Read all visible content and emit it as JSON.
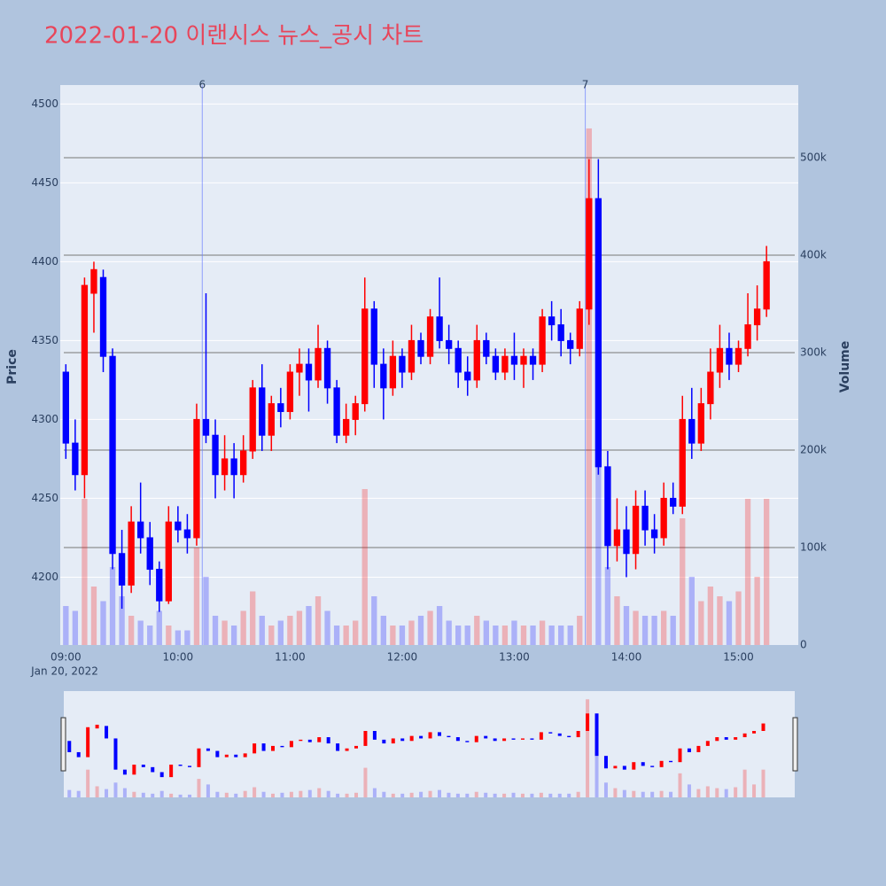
{
  "chart_data": {
    "type": "candlestick",
    "title": "2022-01-20 이랜시스 뉴스_공시 차트",
    "y_axis_label": "Price",
    "y2_axis_label": "Volume",
    "xaxis_date_label": "Jan 20, 2022",
    "increasing_color": "#ff0000",
    "decreasing_color": "#0000ff",
    "x": [
      "2022-01-20 09:00",
      "2022-01-20 09:05",
      "2022-01-20 09:10",
      "2022-01-20 09:15",
      "2022-01-20 09:20",
      "2022-01-20 09:25",
      "2022-01-20 09:30",
      "2022-01-20 09:35",
      "2022-01-20 09:40",
      "2022-01-20 09:45",
      "2022-01-20 09:50",
      "2022-01-20 09:55",
      "2022-01-20 10:00",
      "2022-01-20 10:05",
      "2022-01-20 10:10",
      "2022-01-20 10:15",
      "2022-01-20 10:20",
      "2022-01-20 10:25",
      "2022-01-20 10:30",
      "2022-01-20 10:35",
      "2022-01-20 10:40",
      "2022-01-20 10:45",
      "2022-01-20 10:50",
      "2022-01-20 10:55",
      "2022-01-20 11:00",
      "2022-01-20 11:05",
      "2022-01-20 11:10",
      "2022-01-20 11:15",
      "2022-01-20 11:20",
      "2022-01-20 11:25",
      "2022-01-20 11:30",
      "2022-01-20 11:35",
      "2022-01-20 11:40",
      "2022-01-20 11:45",
      "2022-01-20 11:50",
      "2022-01-20 11:55",
      "2022-01-20 12:00",
      "2022-01-20 12:05",
      "2022-01-20 12:10",
      "2022-01-20 12:15",
      "2022-01-20 12:20",
      "2022-01-20 12:25",
      "2022-01-20 12:30",
      "2022-01-20 12:35",
      "2022-01-20 12:40",
      "2022-01-20 12:45",
      "2022-01-20 12:50",
      "2022-01-20 12:55",
      "2022-01-20 13:00",
      "2022-01-20 13:05",
      "2022-01-20 13:10",
      "2022-01-20 13:15",
      "2022-01-20 13:20",
      "2022-01-20 13:25",
      "2022-01-20 13:30",
      "2022-01-20 13:35",
      "2022-01-20 13:40",
      "2022-01-20 13:45",
      "2022-01-20 13:50",
      "2022-01-20 13:55",
      "2022-01-20 14:00",
      "2022-01-20 14:05",
      "2022-01-20 14:10",
      "2022-01-20 14:15",
      "2022-01-20 14:20",
      "2022-01-20 14:25",
      "2022-01-20 14:30",
      "2022-01-20 14:35",
      "2022-01-20 14:40",
      "2022-01-20 14:45",
      "2022-01-20 14:50",
      "2022-01-20 14:55",
      "2022-01-20 15:00",
      "2022-01-20 15:05",
      "2022-01-20 15:10",
      "2022-01-20 15:15"
    ],
    "open": [
      4330,
      4285,
      4265,
      4380,
      4390,
      4340,
      4215,
      4195,
      4235,
      4225,
      4205,
      4185,
      4235,
      4230,
      4225,
      4300,
      4290,
      4265,
      4275,
      4265,
      4280,
      4320,
      4290,
      4310,
      4305,
      4330,
      4335,
      4325,
      4345,
      4320,
      4290,
      4300,
      4310,
      4370,
      4335,
      4320,
      4340,
      4330,
      4350,
      4340,
      4365,
      4350,
      4345,
      4330,
      4325,
      4350,
      4340,
      4330,
      4340,
      4335,
      4340,
      4335,
      4365,
      4360,
      4350,
      4345,
      4370,
      4440,
      4270,
      4220,
      4230,
      4215,
      4245,
      4230,
      4225,
      4250,
      4245,
      4300,
      4285,
      4310,
      4330,
      4345,
      4335,
      4345,
      4360,
      4370
    ],
    "high": [
      4335,
      4300,
      4390,
      4400,
      4395,
      4345,
      4230,
      4245,
      4260,
      4235,
      4210,
      4245,
      4245,
      4240,
      4310,
      4380,
      4300,
      4290,
      4285,
      4290,
      4325,
      4335,
      4315,
      4320,
      4335,
      4345,
      4345,
      4360,
      4350,
      4325,
      4310,
      4315,
      4390,
      4375,
      4345,
      4350,
      4345,
      4360,
      4355,
      4370,
      4390,
      4360,
      4350,
      4340,
      4360,
      4355,
      4345,
      4345,
      4355,
      4345,
      4345,
      4370,
      4375,
      4370,
      4355,
      4375,
      4465,
      4465,
      4280,
      4250,
      4245,
      4255,
      4255,
      4240,
      4260,
      4260,
      4315,
      4320,
      4320,
      4345,
      4360,
      4355,
      4350,
      4380,
      4385,
      4410
    ],
    "low": [
      4275,
      4255,
      4250,
      4355,
      4330,
      4205,
      4180,
      4190,
      4215,
      4195,
      4178,
      4183,
      4222,
      4215,
      4220,
      4285,
      4250,
      4255,
      4250,
      4260,
      4275,
      4280,
      4280,
      4295,
      4300,
      4315,
      4305,
      4320,
      4310,
      4285,
      4285,
      4290,
      4305,
      4320,
      4300,
      4315,
      4320,
      4325,
      4335,
      4335,
      4345,
      4335,
      4320,
      4315,
      4320,
      4335,
      4325,
      4325,
      4325,
      4320,
      4325,
      4330,
      4350,
      4340,
      4335,
      4340,
      4360,
      4265,
      4205,
      4210,
      4200,
      4205,
      4220,
      4215,
      4220,
      4240,
      4240,
      4275,
      4280,
      4300,
      4320,
      4325,
      4330,
      4340,
      4350,
      4365
    ],
    "close": [
      4285,
      4265,
      4385,
      4395,
      4340,
      4215,
      4195,
      4235,
      4225,
      4205,
      4185,
      4235,
      4230,
      4225,
      4300,
      4290,
      4265,
      4275,
      4265,
      4280,
      4320,
      4290,
      4310,
      4305,
      4330,
      4335,
      4325,
      4345,
      4320,
      4290,
      4300,
      4310,
      4370,
      4335,
      4320,
      4340,
      4330,
      4350,
      4340,
      4365,
      4350,
      4345,
      4330,
      4325,
      4350,
      4340,
      4330,
      4340,
      4335,
      4340,
      4335,
      4365,
      4360,
      4350,
      4345,
      4370,
      4440,
      4270,
      4220,
      4230,
      4215,
      4245,
      4230,
      4225,
      4250,
      4245,
      4300,
      4285,
      4310,
      4330,
      4345,
      4335,
      4345,
      4360,
      4370,
      4400
    ],
    "volume": [
      40000,
      35000,
      150000,
      60000,
      45000,
      80000,
      50000,
      30000,
      25000,
      20000,
      35000,
      20000,
      15000,
      15000,
      100000,
      70000,
      30000,
      25000,
      20000,
      35000,
      55000,
      30000,
      20000,
      25000,
      30000,
      35000,
      40000,
      50000,
      35000,
      20000,
      20000,
      25000,
      160000,
      50000,
      30000,
      20000,
      20000,
      25000,
      30000,
      35000,
      40000,
      25000,
      20000,
      20000,
      30000,
      25000,
      20000,
      20000,
      25000,
      20000,
      20000,
      25000,
      20000,
      20000,
      20000,
      30000,
      530000,
      250000,
      80000,
      50000,
      40000,
      35000,
      30000,
      30000,
      35000,
      30000,
      130000,
      70000,
      45000,
      60000,
      50000,
      45000,
      55000,
      150000,
      70000,
      150000
    ],
    "annotations": [
      {
        "x": "2022-01-20 10:13",
        "text": "6"
      },
      {
        "x": "2022-01-20 13:38",
        "text": "7"
      }
    ],
    "xlim": [
      "2022-01-20 08:57",
      "2022-01-20 15:32"
    ],
    "xticks": [
      {
        "value": "2022-01-20 09:00",
        "label": "09:00"
      },
      {
        "value": "2022-01-20 10:00",
        "label": "10:00"
      },
      {
        "value": "2022-01-20 11:00",
        "label": "11:00"
      },
      {
        "value": "2022-01-20 12:00",
        "label": "12:00"
      },
      {
        "value": "2022-01-20 13:00",
        "label": "13:00"
      },
      {
        "value": "2022-01-20 14:00",
        "label": "14:00"
      },
      {
        "value": "2022-01-20 15:00",
        "label": "15:00"
      }
    ],
    "ylim": [
      4157,
      4512
    ],
    "yticks": [
      4200,
      4250,
      4300,
      4350,
      4400,
      4450,
      4500
    ],
    "y2lim": [
      0,
      574500
    ],
    "y2ticks": [
      0,
      {
        "value": 100000,
        "label": "100k"
      },
      {
        "value": 200000,
        "label": "200k"
      },
      {
        "value": 300000,
        "label": "300k"
      },
      {
        "value": 400000,
        "label": "400k"
      },
      {
        "value": 500000,
        "label": "500k"
      }
    ],
    "grid": true,
    "rangeslider": true
  }
}
